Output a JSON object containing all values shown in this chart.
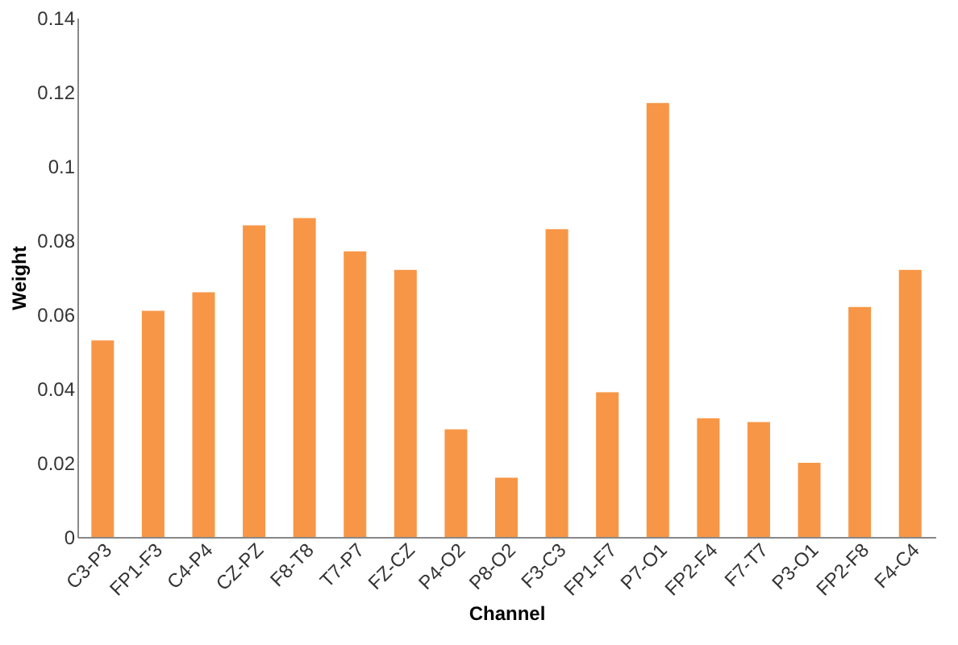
{
  "chart_data": {
    "type": "bar",
    "xlabel": "Channel",
    "ylabel": "Weight",
    "categories": [
      "C3-P3",
      "FP1-F3",
      "C4-P4",
      "CZ-PZ",
      "F8-T8",
      "T7-P7",
      "FZ-CZ",
      "P4-O2",
      "P8-O2",
      "F3-C3",
      "FP1-F7",
      "P7-O1",
      "FP2-F4",
      "F7-T7",
      "P3-O1",
      "FP2-F8",
      "F4-C4"
    ],
    "values": [
      0.053,
      0.061,
      0.066,
      0.084,
      0.086,
      0.077,
      0.072,
      0.029,
      0.016,
      0.083,
      0.039,
      0.117,
      0.032,
      0.031,
      0.02,
      0.062,
      0.072
    ],
    "color": "#f79646",
    "ylim": [
      0,
      0.14
    ],
    "yticks": [
      0,
      0.02,
      0.04,
      0.06,
      0.08,
      0.1,
      0.12,
      0.14
    ],
    "grid": false
  }
}
